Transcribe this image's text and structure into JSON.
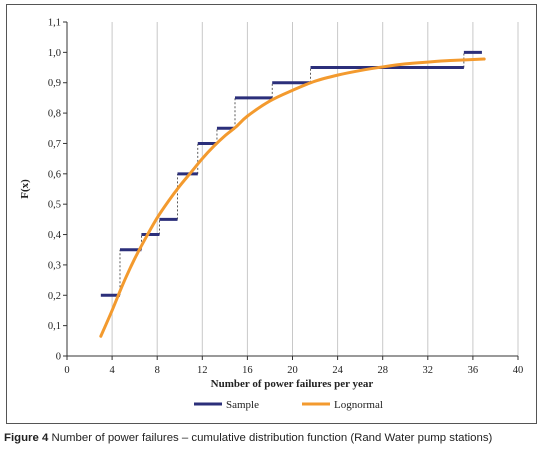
{
  "chart_data": {
    "type": "line",
    "title": "",
    "xlabel": "Number of power failures per year",
    "ylabel": "F(x)",
    "xlim": [
      0,
      40
    ],
    "ylim": [
      0,
      1.1
    ],
    "x_ticks": [
      0,
      4,
      8,
      12,
      16,
      20,
      24,
      28,
      32,
      36,
      40
    ],
    "x_tick_labels": [
      "0",
      "4",
      "8",
      "12",
      "16",
      "20",
      "24",
      "28",
      "32",
      "36",
      "40"
    ],
    "y_ticks": [
      0,
      0.1,
      0.2,
      0.3,
      0.4,
      0.5,
      0.6,
      0.7,
      0.8,
      0.9,
      1.0,
      1.1
    ],
    "y_tick_labels": [
      "0",
      "0,1",
      "0,2",
      "0,3",
      "0,4",
      "0,5",
      "0,6",
      "0,7",
      "0,8",
      "0,9",
      "1,0",
      "1,1"
    ],
    "grid": "vertical",
    "legend_position": "bottom",
    "series": [
      {
        "name": "Sample",
        "style": "step",
        "color": "#2b2f7a",
        "steps": [
          {
            "x0": 3.0,
            "x1": 4.7,
            "y": 0.2
          },
          {
            "x0": 4.7,
            "x1": 6.6,
            "y": 0.35
          },
          {
            "x0": 6.6,
            "x1": 8.2,
            "y": 0.4
          },
          {
            "x0": 8.2,
            "x1": 9.8,
            "y": 0.45
          },
          {
            "x0": 9.8,
            "x1": 11.6,
            "y": 0.6
          },
          {
            "x0": 11.6,
            "x1": 13.3,
            "y": 0.7
          },
          {
            "x0": 13.3,
            "x1": 14.9,
            "y": 0.75
          },
          {
            "x0": 14.9,
            "x1": 18.2,
            "y": 0.85
          },
          {
            "x0": 18.2,
            "x1": 21.6,
            "y": 0.9
          },
          {
            "x0": 21.6,
            "x1": 35.2,
            "y": 0.95
          },
          {
            "x0": 35.2,
            "x1": 36.8,
            "y": 1.0
          }
        ]
      },
      {
        "name": "Lognormal",
        "style": "line",
        "color": "#f39a2e",
        "x": [
          3,
          4,
          5,
          6,
          7,
          8,
          9,
          10,
          11,
          12,
          13,
          14,
          15,
          16,
          18,
          20,
          22,
          24,
          26,
          28,
          30,
          32,
          34,
          37
        ],
        "y": [
          0.065,
          0.15,
          0.24,
          0.32,
          0.39,
          0.455,
          0.51,
          0.56,
          0.605,
          0.65,
          0.69,
          0.725,
          0.755,
          0.79,
          0.84,
          0.875,
          0.905,
          0.925,
          0.94,
          0.952,
          0.962,
          0.968,
          0.973,
          0.978
        ]
      }
    ]
  },
  "caption": {
    "lead": "Figure 4",
    "text": "Number of power failures – cumulative distribution function (Rand Water pump stations)"
  }
}
